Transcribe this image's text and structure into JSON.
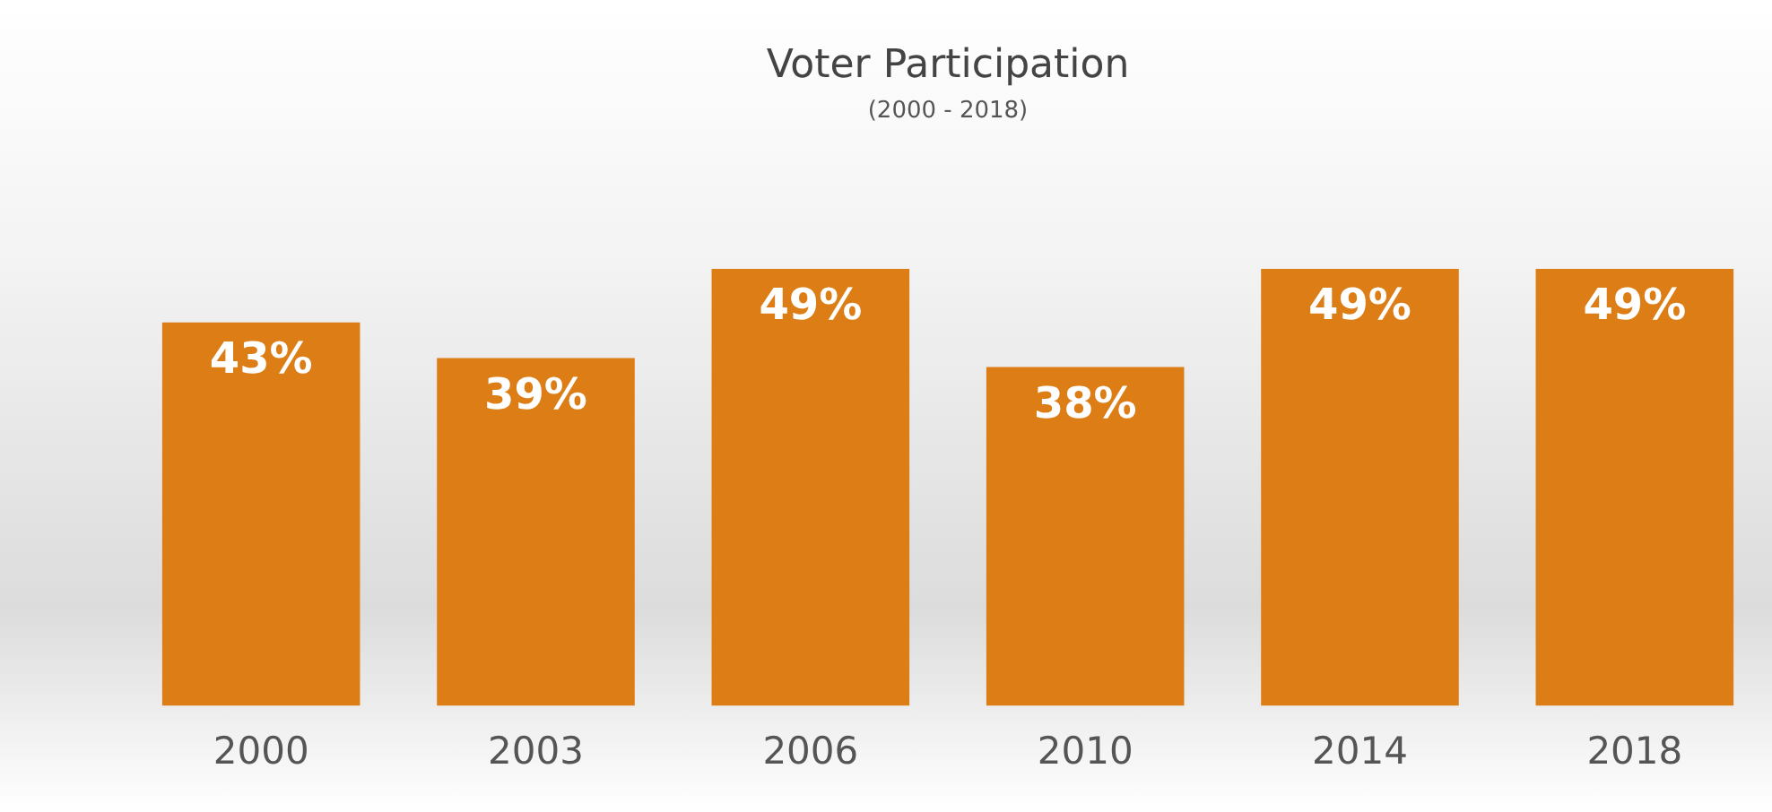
{
  "chart_data": {
    "type": "bar",
    "title": "Voter Participation",
    "subtitle": "(2000 - 2018)",
    "categories": [
      "2000",
      "2003",
      "2006",
      "2010",
      "2014",
      "2018"
    ],
    "values": [
      43,
      39,
      49,
      38,
      49,
      49
    ],
    "value_labels": [
      "43%",
      "39%",
      "49%",
      "38%",
      "49%",
      "49%"
    ],
    "color": "#dc7d16",
    "ylim": [
      0,
      49
    ],
    "grid": false,
    "legend": false,
    "tick_labels": "x"
  }
}
